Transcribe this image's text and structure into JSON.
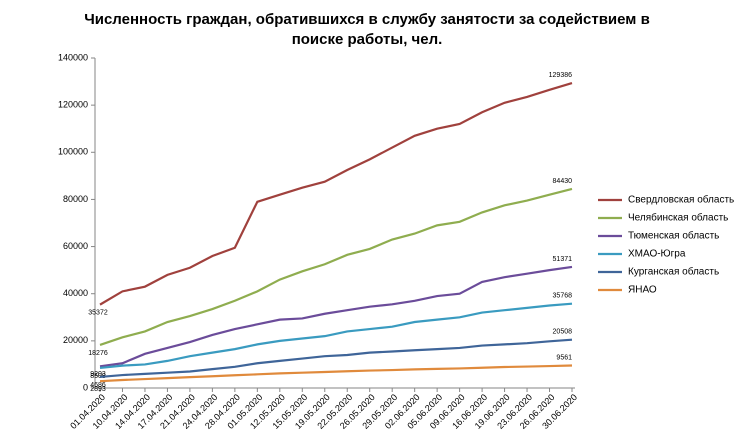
{
  "chart_data": {
    "type": "line",
    "title": [
      "Численность граждан, обратившихся в службу занятости за содействием в",
      "поиске работы, чел."
    ],
    "categories": [
      "01.04.2020",
      "10.04.2020",
      "14.04.2020",
      "17.04.2020",
      "21.04.2020",
      "24.04.2020",
      "28.04.2020",
      "01.05.2020",
      "12.05.2020",
      "15.05.2020",
      "19.05.2020",
      "22.05.2020",
      "26.05.2020",
      "29.05.2020",
      "02.06.2020",
      "05.06.2020",
      "09.06.2020",
      "16.06.2020",
      "19.06.2020",
      "23.06.2020",
      "26.06.2020",
      "30.06.2020"
    ],
    "series": [
      {
        "name": "Свердловская область",
        "color": "#a0413d",
        "values": [
          35372,
          41000,
          43000,
          48000,
          51000,
          56000,
          59500,
          79000,
          82000,
          85000,
          87500,
          92500,
          97000,
          102000,
          107000,
          110000,
          112000,
          117000,
          121000,
          123500,
          126500,
          129386
        ]
      },
      {
        "name": "Челябинская область",
        "color": "#8fad4f",
        "values": [
          18276,
          21500,
          24000,
          28000,
          30500,
          33500,
          37000,
          41000,
          46000,
          49500,
          52500,
          56500,
          59000,
          63000,
          65500,
          69000,
          70500,
          74500,
          77500,
          79500,
          82000,
          84430
        ]
      },
      {
        "name": "Тюменская область",
        "color": "#6b4c9a",
        "values": [
          9203,
          10500,
          14500,
          17000,
          19500,
          22500,
          25000,
          27000,
          29000,
          29500,
          31500,
          33000,
          34500,
          35500,
          37000,
          39000,
          40000,
          45000,
          47000,
          48500,
          50000,
          51371
        ]
      },
      {
        "name": "ХМАО-Югра",
        "color": "#3a9bc0",
        "values": [
          8508,
          9500,
          10000,
          11500,
          13500,
          15000,
          16500,
          18500,
          20000,
          21000,
          22000,
          24000,
          25000,
          26000,
          28000,
          29000,
          30000,
          32000,
          33000,
          34000,
          35000,
          35768
        ]
      },
      {
        "name": "Курганская область",
        "color": "#3f6599",
        "values": [
          4686,
          5500,
          6000,
          6500,
          7000,
          8000,
          9000,
          10500,
          11500,
          12500,
          13500,
          14000,
          15000,
          15500,
          16000,
          16500,
          17000,
          18000,
          18500,
          19000,
          19800,
          20508
        ]
      },
      {
        "name": "ЯНАО",
        "color": "#e08a3c",
        "values": [
          2893,
          3400,
          3800,
          4200,
          4600,
          5000,
          5400,
          5800,
          6200,
          6500,
          6800,
          7100,
          7400,
          7600,
          7900,
          8100,
          8300,
          8600,
          8900,
          9100,
          9300,
          9561
        ]
      }
    ],
    "ylim": [
      0,
      140000
    ],
    "yticks": [
      0,
      20000,
      40000,
      60000,
      80000,
      100000,
      120000,
      140000
    ],
    "grid": false,
    "legend": "right"
  }
}
